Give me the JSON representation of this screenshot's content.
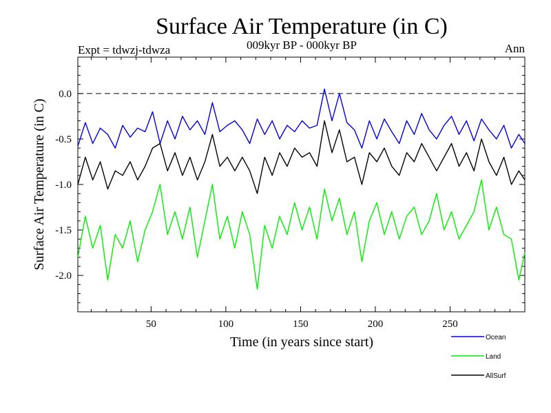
{
  "chart_data": {
    "type": "line",
    "title": "Surface Air Temperature (in C)",
    "subtitle_left": "Expt = tdwzj-tdwza",
    "subtitle_center": "009kyr BP - 000kyr BP",
    "subtitle_right": "Ann",
    "xlabel": "Time (in years since start)",
    "ylabel": "Surface Air Temperature (in C)",
    "xlim": [
      1,
      300
    ],
    "ylim": [
      -2.4,
      0.4
    ],
    "xticks": [
      50,
      100,
      150,
      200,
      250
    ],
    "yticks": [
      0.0,
      -0.5,
      -1.0,
      -1.5,
      -2.0
    ],
    "ytick_labels": [
      "0.0",
      "-0.5",
      "-1.0",
      "-1.5",
      "-2.0"
    ],
    "reference_line": {
      "y": 0.0,
      "style": "dashed"
    },
    "legend_position": "bottom-right",
    "x": [
      1,
      6,
      11,
      16,
      21,
      26,
      31,
      36,
      41,
      46,
      51,
      56,
      61,
      66,
      71,
      76,
      81,
      86,
      91,
      96,
      101,
      106,
      111,
      116,
      121,
      126,
      131,
      136,
      141,
      146,
      151,
      156,
      161,
      166,
      171,
      176,
      181,
      186,
      191,
      196,
      201,
      206,
      211,
      216,
      221,
      226,
      231,
      236,
      241,
      246,
      251,
      256,
      261,
      266,
      271,
      276,
      281,
      286,
      291,
      296,
      300
    ],
    "series": [
      {
        "name": "Ocean",
        "color": "#0000e0",
        "values": [
          -0.58,
          -0.32,
          -0.55,
          -0.38,
          -0.45,
          -0.6,
          -0.35,
          -0.48,
          -0.38,
          -0.42,
          -0.2,
          -0.55,
          -0.3,
          -0.5,
          -0.25,
          -0.4,
          -0.3,
          -0.45,
          -0.1,
          -0.42,
          -0.35,
          -0.3,
          -0.4,
          -0.55,
          -0.28,
          -0.45,
          -0.3,
          -0.5,
          -0.35,
          -0.42,
          -0.3,
          -0.38,
          -0.35,
          0.05,
          -0.3,
          0.0,
          -0.32,
          -0.4,
          -0.6,
          -0.3,
          -0.5,
          -0.28,
          -0.42,
          -0.55,
          -0.3,
          -0.45,
          -0.22,
          -0.4,
          -0.5,
          -0.35,
          -0.25,
          -0.45,
          -0.3,
          -0.52,
          -0.28,
          -0.4,
          -0.5,
          -0.35,
          -0.6,
          -0.45,
          -0.55
        ]
      },
      {
        "name": "Land",
        "color": "#00ee00",
        "values": [
          -1.8,
          -1.35,
          -1.7,
          -1.45,
          -2.05,
          -1.55,
          -1.7,
          -1.4,
          -1.85,
          -1.5,
          -1.3,
          -1.0,
          -1.55,
          -1.3,
          -1.6,
          -1.25,
          -1.8,
          -1.4,
          -1.0,
          -1.6,
          -1.35,
          -1.7,
          -1.3,
          -1.55,
          -2.15,
          -1.45,
          -1.7,
          -1.35,
          -1.55,
          -1.2,
          -1.5,
          -1.25,
          -1.6,
          -1.05,
          -1.4,
          -1.15,
          -1.55,
          -1.3,
          -1.85,
          -1.4,
          -1.2,
          -1.55,
          -1.3,
          -1.6,
          -1.35,
          -1.25,
          -1.55,
          -1.4,
          -1.1,
          -1.5,
          -1.3,
          -1.6,
          -1.45,
          -1.3,
          -0.95,
          -1.5,
          -1.25,
          -1.55,
          -1.6,
          -2.05,
          -1.75
        ]
      },
      {
        "name": "AllSurf",
        "color": "#000000",
        "values": [
          -1.0,
          -0.7,
          -0.95,
          -0.75,
          -1.05,
          -0.85,
          -0.9,
          -0.75,
          -0.95,
          -0.8,
          -0.6,
          -0.55,
          -0.85,
          -0.65,
          -0.9,
          -0.7,
          -0.95,
          -0.75,
          -0.45,
          -0.8,
          -0.7,
          -0.85,
          -0.7,
          -0.85,
          -1.1,
          -0.7,
          -0.9,
          -0.65,
          -0.8,
          -0.6,
          -0.7,
          -0.65,
          -0.8,
          -0.3,
          -0.65,
          -0.4,
          -0.75,
          -0.7,
          -1.0,
          -0.65,
          -0.75,
          -0.6,
          -0.8,
          -0.9,
          -0.65,
          -0.75,
          -0.55,
          -0.7,
          -0.85,
          -0.7,
          -0.55,
          -0.8,
          -0.65,
          -0.85,
          -0.5,
          -0.75,
          -0.9,
          -0.7,
          -1.0,
          -0.85,
          -0.95
        ]
      }
    ]
  }
}
